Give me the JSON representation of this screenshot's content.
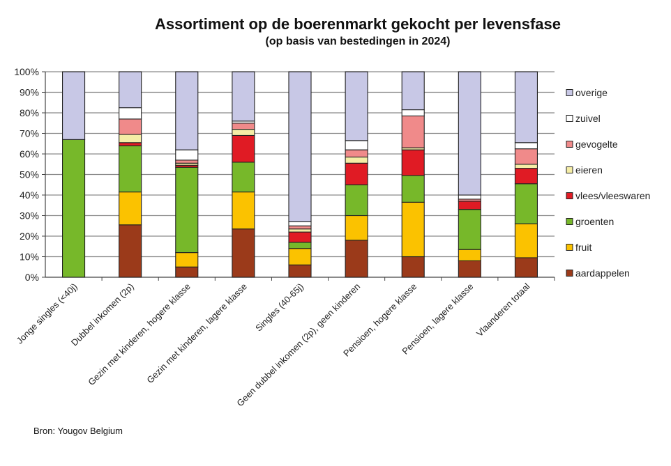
{
  "chart_data": {
    "type": "bar",
    "stacked": true,
    "title": "Assortiment op de boerenmarkt gekocht per levensfase",
    "subtitle": "(op basis van bestedingen in 2024)",
    "source": "Bron: Yougov Belgium",
    "ylim": [
      0,
      100
    ],
    "ytick_labels": [
      "0%",
      "10%",
      "20%",
      "30%",
      "40%",
      "50%",
      "60%",
      "70%",
      "80%",
      "90%",
      "100%"
    ],
    "grid": true,
    "legend_position": "right",
    "categories": [
      "Jonge singles (<40j)",
      "Dubbel inkomen (2p)",
      "Gezin met kinderen, hogere klasse",
      "Gezin met kinderen, lagere klasse",
      "Singles (40-65j)",
      "Geen dubbel inkomen (2p), geen kinderen",
      "Pensioen, hogere klasse",
      "Pensioen, lagere klasse",
      "Vlaanderen totaal"
    ],
    "series": [
      {
        "name": "aardappelen",
        "color": "#9b3a1a",
        "values": [
          0,
          25.5,
          5,
          23.5,
          6,
          18,
          10,
          8,
          9.5
        ]
      },
      {
        "name": "fruit",
        "color": "#fbc200",
        "values": [
          0,
          16,
          7,
          18,
          8,
          12,
          26.5,
          5.5,
          16.5
        ]
      },
      {
        "name": "groenten",
        "color": "#77b82a",
        "values": [
          67,
          22.5,
          41.5,
          14.5,
          3,
          15,
          13,
          19.5,
          19.5
        ]
      },
      {
        "name": "vlees/vleeswaren",
        "color": "#e01b24",
        "values": [
          0,
          1.5,
          1,
          13,
          5,
          10.5,
          12.5,
          4,
          7.5
        ]
      },
      {
        "name": "eieren",
        "color": "#f5eda6",
        "values": [
          0,
          4,
          1,
          3,
          1.5,
          3,
          1,
          0,
          2
        ]
      },
      {
        "name": "gevogelte",
        "color": "#f08a8a",
        "values": [
          0,
          7.5,
          1.5,
          3,
          1.5,
          3.5,
          15.5,
          1,
          7.5
        ]
      },
      {
        "name": "zuivel",
        "color": "#ffffff",
        "values": [
          0,
          5.5,
          5,
          1,
          2,
          4.5,
          3,
          2,
          3
        ]
      },
      {
        "name": "overige",
        "color": "#c8c8e6",
        "values": [
          33,
          17.5,
          38,
          24,
          73,
          33.5,
          18.5,
          60,
          34.5
        ]
      }
    ]
  }
}
